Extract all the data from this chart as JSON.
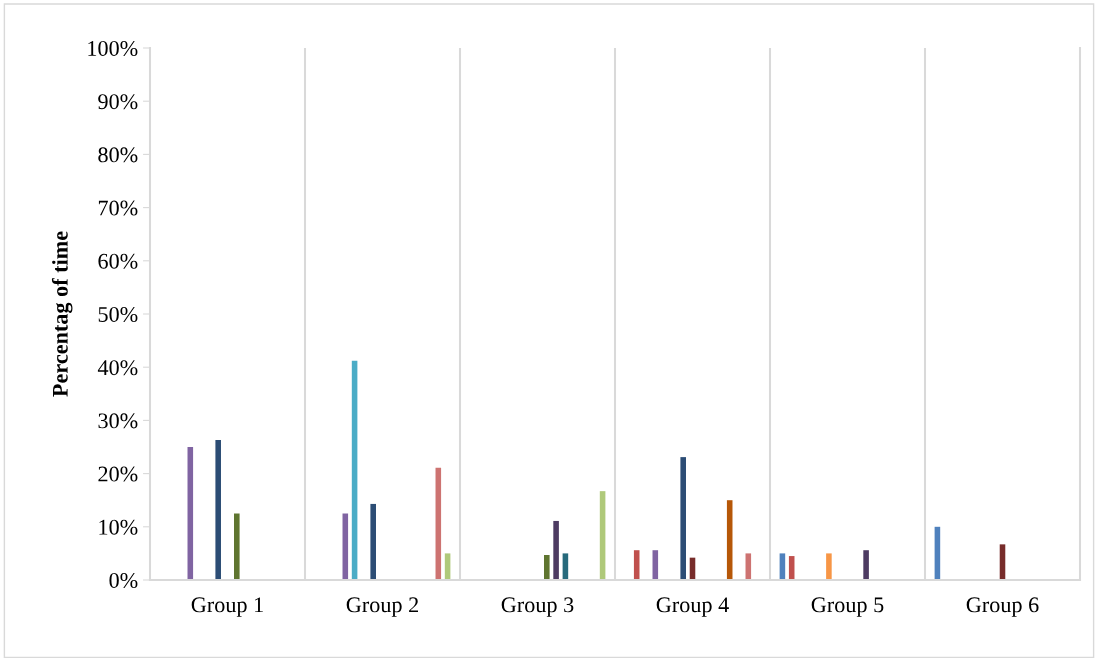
{
  "chart_data": {
    "type": "bar",
    "ylabel": "Percentag of time",
    "categories": [
      "Group 1",
      "Group 2",
      "Group 3",
      "Group 4",
      "Group 5",
      "Group 6"
    ],
    "series": [
      {
        "color": "#4f81bd",
        "values": [
          null,
          null,
          null,
          null,
          5.0,
          10.0
        ]
      },
      {
        "color": "#c0504d",
        "values": [
          null,
          null,
          null,
          5.6,
          4.5,
          null
        ]
      },
      {
        "values": [
          null,
          null,
          null,
          null,
          null,
          null
        ]
      },
      {
        "color": "#8064a2",
        "values": [
          25.0,
          12.5,
          null,
          5.6,
          null,
          null
        ]
      },
      {
        "color": "#4bacc6",
        "values": [
          null,
          41.2,
          null,
          null,
          null,
          null
        ]
      },
      {
        "color": "#f79646",
        "values": [
          null,
          null,
          null,
          null,
          5.0,
          null
        ]
      },
      {
        "color": "#2c4d75",
        "values": [
          26.3,
          14.3,
          null,
          23.1,
          null,
          null
        ]
      },
      {
        "color": "#772c2a",
        "values": [
          null,
          null,
          null,
          4.2,
          null,
          6.7
        ]
      },
      {
        "color": "#5f7530",
        "values": [
          12.5,
          null,
          4.7,
          null,
          null,
          null
        ]
      },
      {
        "color": "#4d3b62",
        "values": [
          null,
          null,
          11.1,
          null,
          5.6,
          null
        ]
      },
      {
        "color": "#276a7c",
        "values": [
          null,
          null,
          5.0,
          null,
          null,
          null
        ]
      },
      {
        "color": "#b65708",
        "values": [
          null,
          null,
          null,
          15.0,
          null,
          null
        ]
      },
      {
        "values": [
          null,
          null,
          null,
          null,
          null,
          null
        ]
      },
      {
        "color": "#cd7371",
        "values": [
          null,
          21.1,
          null,
          5.0,
          null,
          null
        ]
      },
      {
        "color": "#afc97a",
        "values": [
          null,
          5.0,
          16.7,
          null,
          null,
          null
        ]
      }
    ],
    "ylim": [
      0,
      100
    ],
    "yticks": [
      {
        "value": 0,
        "label": "0%"
      },
      {
        "value": 10,
        "label": "10%"
      },
      {
        "value": 20,
        "label": "20%"
      },
      {
        "value": 30,
        "label": "30%"
      },
      {
        "value": 40,
        "label": "40%"
      },
      {
        "value": 50,
        "label": "50%"
      },
      {
        "value": 60,
        "label": "60%"
      },
      {
        "value": 70,
        "label": "70%"
      },
      {
        "value": 80,
        "label": "80%"
      },
      {
        "value": 90,
        "label": "90%"
      },
      {
        "value": 100,
        "label": "100%"
      }
    ],
    "grid": "x"
  }
}
